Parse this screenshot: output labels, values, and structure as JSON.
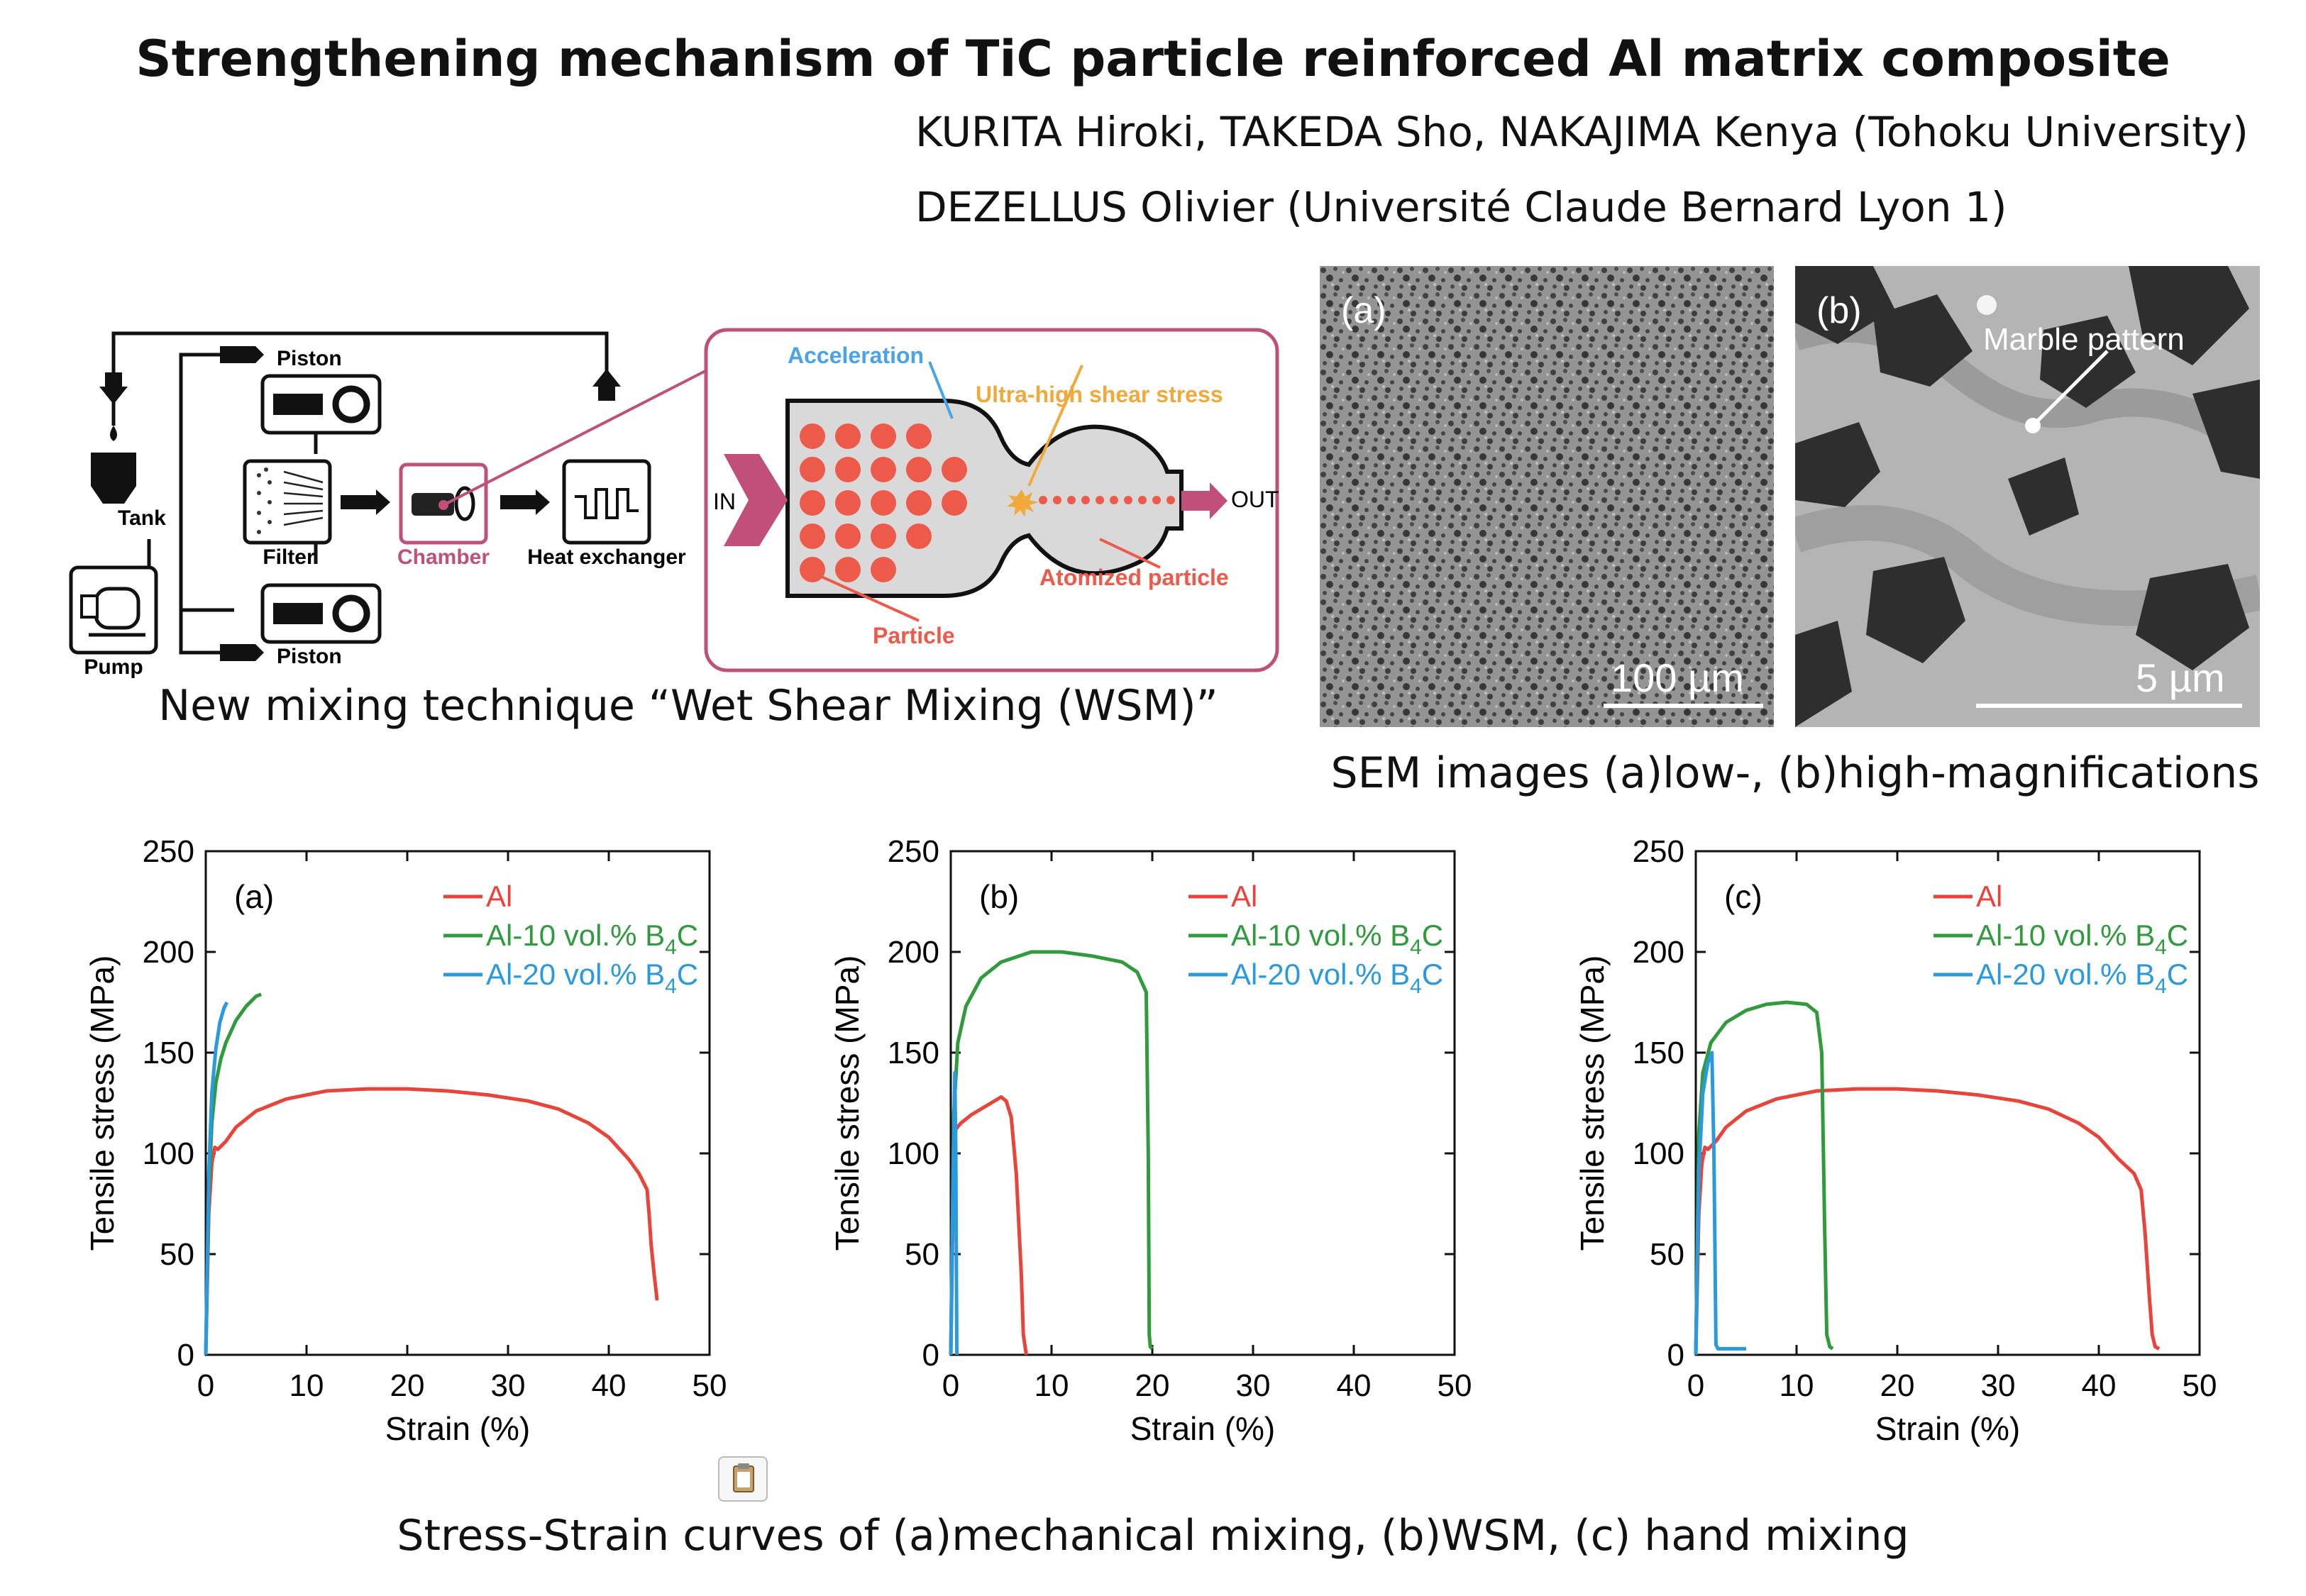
{
  "title": "Strengthening mechanism of TiC particle reinforced Al matrix composite",
  "authors_line1": "KURITA Hiroki, TAKEDA Sho, NAKAJIMA Kenya (Tohoku University)",
  "authors_line2": "DEZELLUS Olivier (Université Claude Bernard Lyon 1)",
  "diagram": {
    "labels": {
      "piston_top": "Piston",
      "piston_bottom": "Piston",
      "tank": "Tank",
      "filter": "Filter",
      "chamber": "Chamber",
      "heat_exchanger": "Heat exchanger",
      "pump": "Pump",
      "acceleration": "Acceleration",
      "shear": "Ultra-high shear stress",
      "in": "IN",
      "out": "OUT",
      "atomized": "Atomized particle",
      "particle": "Particle"
    },
    "colors": {
      "chamber": "#c0507a",
      "particle": "#ee5a4a",
      "accel": "#4aa3e8",
      "shear": "#f0a93a"
    },
    "caption": "New mixing technique “Wet Shear Mixing (WSM)”"
  },
  "sem": {
    "panel_a_label": "(a)",
    "panel_b_label": "(b)",
    "scale_a": "100 µm",
    "scale_b": "5 µm",
    "marble_label": "Marble pattern",
    "caption": "SEM images (a)low-, (b)high-magnifications"
  },
  "chart_caption": "Stress-Strain curves of (a)mechanical mixing, (b)WSM, (c) hand mixing",
  "chart_data": [
    {
      "type": "line",
      "panel": "(a)",
      "xlabel": "Strain (%)",
      "ylabel": "Tensile stress (MPa)",
      "xlim": [
        0,
        50
      ],
      "ylim": [
        0,
        250
      ],
      "xticks": [
        0,
        10,
        20,
        30,
        40,
        50
      ],
      "yticks": [
        0,
        50,
        100,
        150,
        200,
        250
      ],
      "legend_position": "top-right",
      "series": [
        {
          "name": "Al",
          "color": "#e8443a",
          "x": [
            0,
            0.3,
            0.6,
            0.9,
            1.2,
            2,
            3,
            5,
            8,
            12,
            16,
            20,
            24,
            28,
            32,
            35,
            38,
            40,
            42,
            43,
            43.8,
            44,
            44.2,
            44.5,
            44.8
          ],
          "y": [
            0,
            70,
            95,
            103,
            102,
            106,
            113,
            121,
            127,
            131,
            132,
            132,
            131,
            129,
            126,
            122,
            115,
            108,
            97,
            90,
            82,
            70,
            55,
            40,
            27
          ]
        },
        {
          "name": "Al-10 vol.% B4C",
          "color": "#2f9b3c",
          "x": [
            0,
            0.3,
            0.6,
            1,
            1.5,
            2,
            3,
            4,
            5,
            5.5
          ],
          "y": [
            0,
            80,
            115,
            135,
            147,
            155,
            166,
            173,
            178,
            179
          ]
        },
        {
          "name": "Al-20 vol.% B4C",
          "color": "#2a9ae0",
          "x": [
            0,
            0.3,
            0.6,
            1,
            1.4,
            1.8,
            2.1
          ],
          "y": [
            0,
            90,
            130,
            152,
            165,
            172,
            175
          ]
        }
      ]
    },
    {
      "type": "line",
      "panel": "(b)",
      "xlabel": "Strain (%)",
      "ylabel": "Tensile stress (MPa)",
      "xlim": [
        0,
        50
      ],
      "ylim": [
        0,
        250
      ],
      "xticks": [
        0,
        10,
        20,
        30,
        40,
        50
      ],
      "yticks": [
        0,
        50,
        100,
        150,
        200,
        250
      ],
      "legend_position": "top-right",
      "series": [
        {
          "name": "Al",
          "color": "#e8443a",
          "x": [
            0,
            0.3,
            0.5,
            1,
            2,
            3,
            4,
            5,
            5.5,
            6,
            6.5,
            7,
            7.2,
            7.5
          ],
          "y": [
            0,
            100,
            112,
            115,
            119,
            122,
            125,
            128,
            126,
            118,
            90,
            40,
            10,
            0
          ]
        },
        {
          "name": "Al-10 vol.% B4C",
          "color": "#2f9b3c",
          "x": [
            0,
            0.3,
            0.7,
            1.5,
            3,
            5,
            8,
            11,
            14,
            17,
            18.5,
            19.4,
            19.6,
            19.7,
            19.8,
            20
          ],
          "y": [
            0,
            120,
            155,
            173,
            187,
            195,
            200,
            200,
            198,
            195,
            190,
            180,
            100,
            10,
            4,
            3
          ]
        },
        {
          "name": "Al-20 vol.% B4C",
          "color": "#2a9ae0",
          "x": [
            0,
            0.2,
            0.4,
            0.5,
            0.6
          ],
          "y": [
            0,
            80,
            140,
            100,
            0
          ]
        }
      ]
    },
    {
      "type": "line",
      "panel": "(c)",
      "xlabel": "Strain (%)",
      "ylabel": "Tensile stress (MPa)",
      "xlim": [
        0,
        50
      ],
      "ylim": [
        0,
        250
      ],
      "xticks": [
        0,
        10,
        20,
        30,
        40,
        50
      ],
      "yticks": [
        0,
        50,
        100,
        150,
        200,
        250
      ],
      "legend_position": "top-right",
      "series": [
        {
          "name": "Al",
          "color": "#e8443a",
          "x": [
            0,
            0.3,
            0.6,
            0.9,
            1.2,
            2,
            3,
            5,
            8,
            12,
            16,
            20,
            24,
            28,
            32,
            35,
            38,
            40,
            42,
            43.5,
            44.2,
            44.6,
            45,
            45.3,
            45.6,
            46
          ],
          "y": [
            0,
            70,
            95,
            103,
            102,
            106,
            113,
            121,
            127,
            131,
            132,
            132,
            131,
            129,
            126,
            122,
            115,
            108,
            97,
            90,
            82,
            60,
            30,
            10,
            4,
            3
          ]
        },
        {
          "name": "Al-10 vol.% B4C",
          "color": "#2f9b3c",
          "x": [
            0,
            0.3,
            0.7,
            1.5,
            3,
            5,
            7,
            9,
            11,
            12,
            12.5,
            12.8,
            13,
            13.3,
            13.6
          ],
          "y": [
            0,
            110,
            140,
            155,
            165,
            171,
            174,
            175,
            174,
            170,
            150,
            60,
            10,
            4,
            3
          ]
        },
        {
          "name": "Al-20 vol.% B4C",
          "color": "#2a9ae0",
          "x": [
            0,
            0.3,
            0.7,
            1.2,
            1.6,
            1.8,
            2,
            2.2,
            3,
            4,
            5
          ],
          "y": [
            0,
            90,
            130,
            145,
            150,
            100,
            5,
            3,
            3,
            3,
            3
          ]
        }
      ]
    }
  ]
}
